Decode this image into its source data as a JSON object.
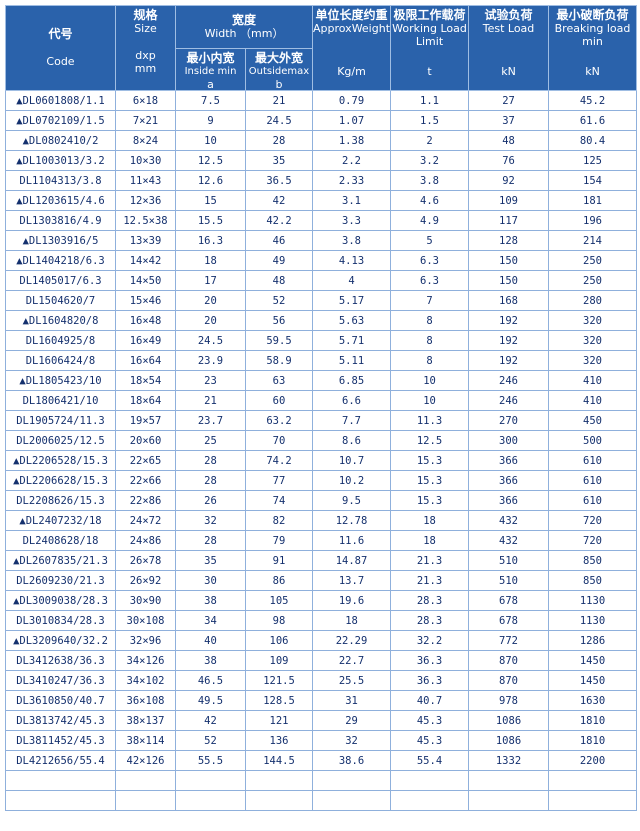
{
  "header": {
    "code": {
      "cn": "代号",
      "en": "Code"
    },
    "size": {
      "cn": "规格",
      "en": "Size",
      "sym": "dxp",
      "unit": "mm"
    },
    "width": {
      "cn": "宽度",
      "en": "Width （mm）",
      "inside": {
        "cn": "最小内宽",
        "en": "Inside min",
        "sym": "a"
      },
      "outside": {
        "cn": "最大外宽",
        "en": "Outsidemax",
        "sym": "b"
      }
    },
    "weight": {
      "cn": "单位长度约重",
      "en": "ApproxWeight",
      "unit": "Kg/m"
    },
    "wll": {
      "cn": "极限工作载荷",
      "en": "Working Load",
      "en2": "Limit",
      "unit": "t"
    },
    "test": {
      "cn": "试验负荷",
      "en": "Test Load",
      "unit": "kN"
    },
    "breaking": {
      "cn": "最小破断负荷",
      "en": "Breaking load",
      "en2": "min",
      "unit": "kN"
    }
  },
  "table": {
    "rows": [
      [
        "▲DL0601808/1.1",
        "6×18",
        "7.5",
        "21",
        "0.79",
        "1.1",
        "27",
        "45.2"
      ],
      [
        "▲DL0702109/1.5",
        "7×21",
        "9",
        "24.5",
        "1.07",
        "1.5",
        "37",
        "61.6"
      ],
      [
        "▲DL0802410/2",
        "8×24",
        "10",
        "28",
        "1.38",
        "2",
        "48",
        "80.4"
      ],
      [
        "▲DL1003013/3.2",
        "10×30",
        "12.5",
        "35",
        "2.2",
        "3.2",
        "76",
        "125"
      ],
      [
        "DL1104313/3.8",
        "11×43",
        "12.6",
        "36.5",
        "2.33",
        "3.8",
        "92",
        "154"
      ],
      [
        "▲DL1203615/4.6",
        "12×36",
        "15",
        "42",
        "3.1",
        "4.6",
        "109",
        "181"
      ],
      [
        "DL1303816/4.9",
        "12.5×38",
        "15.5",
        "42.2",
        "3.3",
        "4.9",
        "117",
        "196"
      ],
      [
        "▲DL1303916/5",
        "13×39",
        "16.3",
        "46",
        "3.8",
        "5",
        "128",
        "214"
      ],
      [
        "▲DL1404218/6.3",
        "14×42",
        "18",
        "49",
        "4.13",
        "6.3",
        "150",
        "250"
      ],
      [
        "DL1405017/6.3",
        "14×50",
        "17",
        "48",
        "4",
        "6.3",
        "150",
        "250"
      ],
      [
        "DL1504620/7",
        "15×46",
        "20",
        "52",
        "5.17",
        "7",
        "168",
        "280"
      ],
      [
        "▲DL1604820/8",
        "16×48",
        "20",
        "56",
        "5.63",
        "8",
        "192",
        "320"
      ],
      [
        "DL1604925/8",
        "16×49",
        "24.5",
        "59.5",
        "5.71",
        "8",
        "192",
        "320"
      ],
      [
        "DL1606424/8",
        "16×64",
        "23.9",
        "58.9",
        "5.11",
        "8",
        "192",
        "320"
      ],
      [
        "▲DL1805423/10",
        "18×54",
        "23",
        "63",
        "6.85",
        "10",
        "246",
        "410"
      ],
      [
        "DL1806421/10",
        "18×64",
        "21",
        "60",
        "6.6",
        "10",
        "246",
        "410"
      ],
      [
        "DL1905724/11.3",
        "19×57",
        "23.7",
        "63.2",
        "7.7",
        "11.3",
        "270",
        "450"
      ],
      [
        "DL2006025/12.5",
        "20×60",
        "25",
        "70",
        "8.6",
        "12.5",
        "300",
        "500"
      ],
      [
        "▲DL2206528/15.3",
        "22×65",
        "28",
        "74.2",
        "10.7",
        "15.3",
        "366",
        "610"
      ],
      [
        "▲DL2206628/15.3",
        "22×66",
        "28",
        "77",
        "10.2",
        "15.3",
        "366",
        "610"
      ],
      [
        "DL2208626/15.3",
        "22×86",
        "26",
        "74",
        "9.5",
        "15.3",
        "366",
        "610"
      ],
      [
        "▲DL2407232/18",
        "24×72",
        "32",
        "82",
        "12.78",
        "18",
        "432",
        "720"
      ],
      [
        "DL2408628/18",
        "24×86",
        "28",
        "79",
        "11.6",
        "18",
        "432",
        "720"
      ],
      [
        "▲DL2607835/21.3",
        "26×78",
        "35",
        "91",
        "14.87",
        "21.3",
        "510",
        "850"
      ],
      [
        "DL2609230/21.3",
        "26×92",
        "30",
        "86",
        "13.7",
        "21.3",
        "510",
        "850"
      ],
      [
        "▲DL3009038/28.3",
        "30×90",
        "38",
        "105",
        "19.6",
        "28.3",
        "678",
        "1130"
      ],
      [
        "DL3010834/28.3",
        "30×108",
        "34",
        "98",
        "18",
        "28.3",
        "678",
        "1130"
      ],
      [
        "▲DL3209640/32.2",
        "32×96",
        "40",
        "106",
        "22.29",
        "32.2",
        "772",
        "1286"
      ],
      [
        "DL3412638/36.3",
        "34×126",
        "38",
        "109",
        "22.7",
        "36.3",
        "870",
        "1450"
      ],
      [
        "DL3410247/36.3",
        "34×102",
        "46.5",
        "121.5",
        "25.5",
        "36.3",
        "870",
        "1450"
      ],
      [
        "DL3610850/40.7",
        "36×108",
        "49.5",
        "128.5",
        "31",
        "40.7",
        "978",
        "1630"
      ],
      [
        "DL3813742/45.3",
        "38×137",
        "42",
        "121",
        "29",
        "45.3",
        "1086",
        "1810"
      ],
      [
        "DL3811452/45.3",
        "38×114",
        "52",
        "136",
        "32",
        "45.3",
        "1086",
        "1810"
      ],
      [
        "DL4212656/55.4",
        "42×126",
        "55.5",
        "144.5",
        "38.6",
        "55.4",
        "1332",
        "2200"
      ]
    ]
  }
}
